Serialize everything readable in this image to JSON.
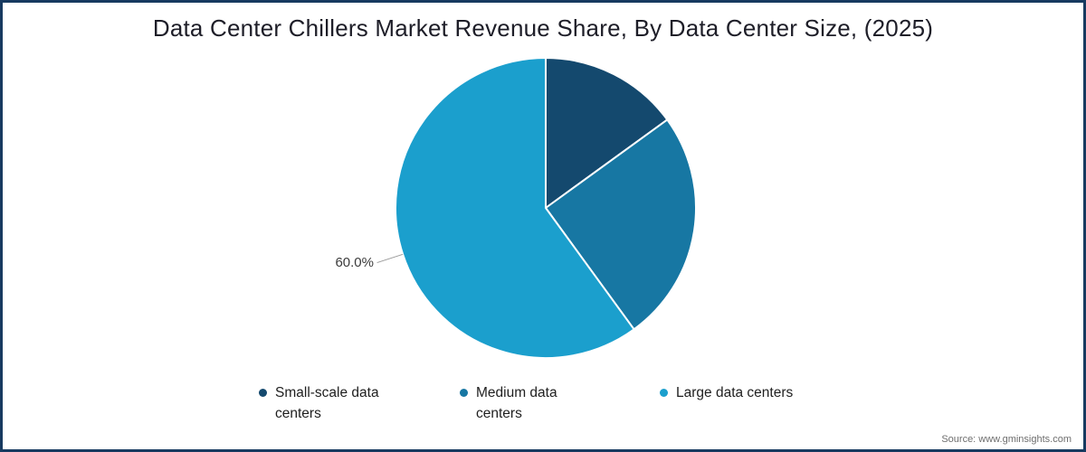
{
  "title": "Data Center Chillers Market Revenue Share, By Data Center Size, (2025)",
  "source": "Source: www.gminsights.com",
  "chart_data": {
    "type": "pie",
    "title": "Data Center Chillers Market Revenue Share, By Data Center Size, (2025)",
    "unit": "%",
    "start_angle_deg": 0,
    "direction": "clockwise",
    "legend_position": "bottom",
    "slices": [
      {
        "label": "Small-scale data centers",
        "value": 15,
        "color": "#14496e"
      },
      {
        "label": "Medium data centers",
        "value": 25,
        "color": "#1777a3"
      },
      {
        "label": "Large data centers",
        "value": 60,
        "color": "#1b9fcd"
      }
    ],
    "annotation": {
      "slice_index": 2,
      "text": "60.0%"
    }
  },
  "styles": {
    "border_color": "#173a60",
    "leader_line_color": "#9a9a9a",
    "slice_stroke_color": "#ffffff"
  }
}
